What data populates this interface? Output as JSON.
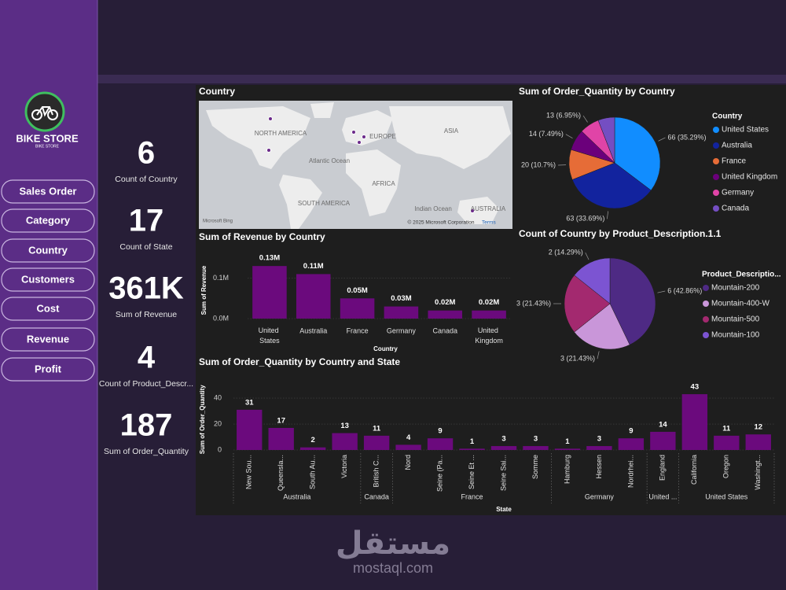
{
  "sidebar": {
    "logo_title": "BIKE STORE",
    "logo_subtitle": "BIKE STORE",
    "buttons": [
      "Sales Order",
      "Category",
      "Country",
      "Customers",
      "Cost",
      "Revenue",
      "Profit"
    ]
  },
  "kpis": [
    {
      "value": "6",
      "label": "Count of Country"
    },
    {
      "value": "17",
      "label": "Count of State"
    },
    {
      "value": "361K",
      "label": "Sum of Revenue"
    },
    {
      "value": "4",
      "label": "Count of Product_Descr..."
    },
    {
      "value": "187",
      "label": "Sum of Order_Quantity"
    }
  ],
  "map": {
    "title": "Country",
    "labels": [
      "NORTH AMERICA",
      "EUROPE",
      "ASIA",
      "Atlantic Ocean",
      "AFRICA",
      "SOUTH AMERICA",
      "Indian Ocean",
      "AUSTRALIA"
    ],
    "attribution": "Microsoft Bing",
    "copyright": "© 2025 Microsoft Corporation",
    "terms": "Terms"
  },
  "chart_data": [
    {
      "type": "bar",
      "title": "Sum of Revenue by Country",
      "x_label": "Country",
      "y_label": "Sum of Revenue",
      "categories": [
        "United States",
        "Australia",
        "France",
        "Germany",
        "Canada",
        "United Kingdom"
      ],
      "values": [
        0.13,
        0.11,
        0.05,
        0.03,
        0.02,
        0.02
      ],
      "value_labels": [
        "0.13M",
        "0.11M",
        "0.05M",
        "0.03M",
        "0.02M",
        "0.02M"
      ],
      "color": "#6b0a7d",
      "ylim": [
        0,
        0.14
      ],
      "yticks": [
        {
          "value": 0,
          "label": "0.0M"
        },
        {
          "value": 0.1,
          "label": "0.1M"
        }
      ],
      "grid": true
    },
    {
      "type": "pie",
      "title": "Sum of Order_Quantity by Country",
      "legend_title": "Country",
      "categories": [
        "United States",
        "Australia",
        "France",
        "United Kingdom",
        "Germany",
        "Canada"
      ],
      "values": [
        66,
        63,
        20,
        14,
        13,
        11
      ],
      "value_labels": [
        "66 (35.29%)",
        "63 (33.69%)",
        "20 (10.7%)",
        "14 (7.49%)",
        "13 (6.95%)",
        null
      ],
      "colors": [
        "#118dff",
        "#12239e",
        "#e66c37",
        "#6b007b",
        "#e044a7",
        "#744ec2"
      ]
    },
    {
      "type": "pie",
      "title": "Count of Country by Product_Description.1.1",
      "legend_title": "Product_Descriptio...",
      "categories": [
        "Mountain-200",
        "Mountain-400-W",
        "Mountain-500",
        "Mountain-100"
      ],
      "values": [
        6,
        3,
        3,
        2
      ],
      "value_labels": [
        "6 (42.86%)",
        "3 (21.43%)",
        "3 (21.43%)",
        "2 (14.29%)"
      ],
      "colors": [
        "#4e2a84",
        "#c996d9",
        "#a3296f",
        "#7c54d2"
      ]
    },
    {
      "type": "grouped_bar",
      "title": "Sum of Order_Quantity by Country and State",
      "x_label": "State",
      "y_label": "Sum of Order_Quantity",
      "groups": [
        {
          "name": "Australia",
          "categories": [
            "New Sou...",
            "Queensla...",
            "South Au...",
            "Victoria"
          ],
          "values": [
            31,
            17,
            2,
            13
          ]
        },
        {
          "name": "Canada",
          "categories": [
            "British C..."
          ],
          "values": [
            11
          ]
        },
        {
          "name": "France",
          "categories": [
            "Nord",
            "Seine (Pa...",
            "Seine Et ...",
            "Seine Sai...",
            "Somme"
          ],
          "values": [
            4,
            9,
            1,
            3,
            3
          ]
        },
        {
          "name": "Germany",
          "categories": [
            "Hamburg",
            "Hessen",
            "Nordrhei..."
          ],
          "values": [
            1,
            3,
            9
          ]
        },
        {
          "name": "United ...",
          "categories": [
            "England"
          ],
          "values": [
            14
          ]
        },
        {
          "name": "United States",
          "categories": [
            "California",
            "Oregon",
            "Washingt..."
          ],
          "values": [
            43,
            11,
            12
          ]
        }
      ],
      "color": "#6b0a7d",
      "ylim": [
        0,
        47
      ],
      "yticks": [
        0,
        20,
        40
      ],
      "grid": true
    }
  ],
  "watermark": {
    "arabic": "مستقل",
    "latin": "mostaql.com"
  }
}
